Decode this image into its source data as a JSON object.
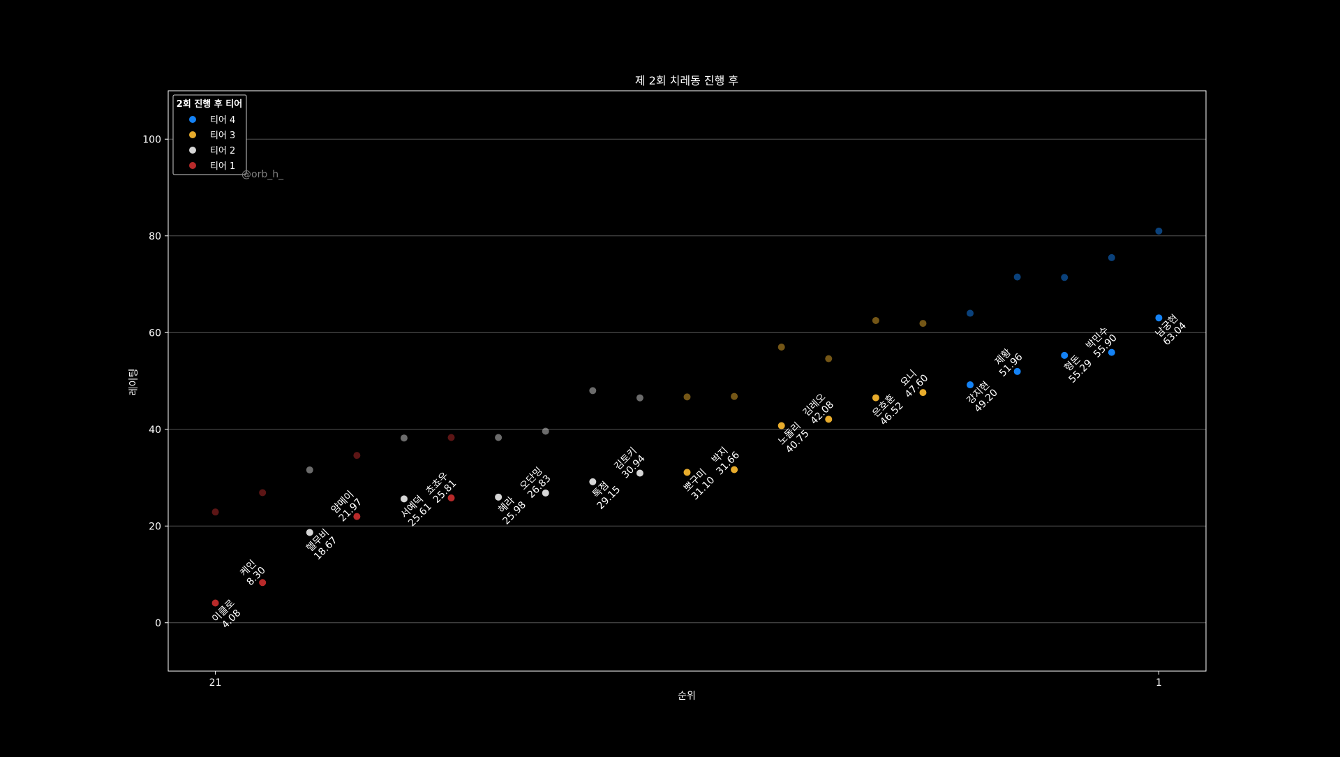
{
  "chart_data": {
    "type": "scatter",
    "title": "제 2회 치레동 진행 후",
    "xlabel": "순위",
    "ylabel": "레이팅",
    "xlim": [
      22,
      0
    ],
    "ylim": [
      -10,
      110
    ],
    "y_ticks": [
      0,
      20,
      40,
      60,
      80,
      100
    ],
    "x_tick_values": [
      21,
      1
    ],
    "x_tick_labels": [
      "21",
      "1"
    ],
    "grid": "y",
    "legend_title": "2회 진행 후 티어",
    "legend_position": "top-left",
    "watermark": "@orb_h_",
    "tiers": [
      {
        "name": "티어 4",
        "color": "#1482F5"
      },
      {
        "name": "티어 3",
        "color": "#E8AC2C"
      },
      {
        "name": "티어 2",
        "color": "#D6D6D6"
      },
      {
        "name": "티어 1",
        "color": "#B82A2A"
      }
    ],
    "previous_points": [
      {
        "x": 21,
        "y": 22.9,
        "tier": 3
      },
      {
        "x": 20,
        "y": 26.9,
        "tier": 3
      },
      {
        "x": 19,
        "y": 31.6,
        "tier": 2
      },
      {
        "x": 18,
        "y": 34.6,
        "tier": 3
      },
      {
        "x": 17,
        "y": 38.2,
        "tier": 2
      },
      {
        "x": 16,
        "y": 38.3,
        "tier": 3
      },
      {
        "x": 15,
        "y": 38.3,
        "tier": 2
      },
      {
        "x": 14,
        "y": 39.6,
        "tier": 2
      },
      {
        "x": 13,
        "y": 48.0,
        "tier": 2
      },
      {
        "x": 12,
        "y": 46.5,
        "tier": 2
      },
      {
        "x": 11,
        "y": 46.7,
        "tier": 1
      },
      {
        "x": 10,
        "y": 46.8,
        "tier": 1
      },
      {
        "x": 9,
        "y": 57.0,
        "tier": 1
      },
      {
        "x": 8,
        "y": 54.6,
        "tier": 1
      },
      {
        "x": 7,
        "y": 62.5,
        "tier": 1
      },
      {
        "x": 6,
        "y": 61.9,
        "tier": 1
      },
      {
        "x": 5,
        "y": 64.0,
        "tier": 0
      },
      {
        "x": 4,
        "y": 71.5,
        "tier": 0
      },
      {
        "x": 3,
        "y": 71.4,
        "tier": 0
      },
      {
        "x": 2,
        "y": 75.5,
        "tier": 0
      },
      {
        "x": 1,
        "y": 81.0,
        "tier": 0
      }
    ],
    "points": [
      {
        "x": 21,
        "y": 4.08,
        "name": "이클로",
        "value": "4.08",
        "tier": 3,
        "side": "below"
      },
      {
        "x": 20,
        "y": 8.3,
        "name": "케인",
        "value": "8.30",
        "tier": 3,
        "side": "above"
      },
      {
        "x": 19,
        "y": 18.67,
        "name": "헬무비",
        "value": "18.67",
        "tier": 2,
        "side": "below"
      },
      {
        "x": 18,
        "y": 21.97,
        "name": "얌메이",
        "value": "21.97",
        "tier": 3,
        "side": "above"
      },
      {
        "x": 17,
        "y": 25.61,
        "name": "서예덕",
        "value": "25.61",
        "tier": 2,
        "side": "below"
      },
      {
        "x": 16,
        "y": 25.81,
        "name": "쵸쵸우",
        "value": "25.81",
        "tier": 3,
        "side": "above"
      },
      {
        "x": 15,
        "y": 25.98,
        "name": "혜라",
        "value": "25.98",
        "tier": 2,
        "side": "below"
      },
      {
        "x": 14,
        "y": 26.83,
        "name": "오단밍",
        "value": "26.83",
        "tier": 2,
        "side": "above"
      },
      {
        "x": 13,
        "y": 29.15,
        "name": "톡점",
        "value": "29.15",
        "tier": 2,
        "side": "below"
      },
      {
        "x": 12,
        "y": 30.94,
        "name": "김토키",
        "value": "30.94",
        "tier": 2,
        "side": "above"
      },
      {
        "x": 11,
        "y": 31.1,
        "name": "뽀구미",
        "value": "31.10",
        "tier": 1,
        "side": "below"
      },
      {
        "x": 10,
        "y": 31.66,
        "name": "박지",
        "value": "31.66",
        "tier": 1,
        "side": "above"
      },
      {
        "x": 9,
        "y": 40.75,
        "name": "노돌리",
        "value": "40.75",
        "tier": 1,
        "side": "below"
      },
      {
        "x": 8,
        "y": 42.08,
        "name": "김레오",
        "value": "42.08",
        "tier": 1,
        "side": "above"
      },
      {
        "x": 7,
        "y": 46.52,
        "name": "은호훈",
        "value": "46.52",
        "tier": 1,
        "side": "below"
      },
      {
        "x": 6,
        "y": 47.6,
        "name": "요니",
        "value": "47.60",
        "tier": 1,
        "side": "above"
      },
      {
        "x": 5,
        "y": 49.2,
        "name": "강지현",
        "value": "49.20",
        "tier": 0,
        "side": "below"
      },
      {
        "x": 4,
        "y": 51.96,
        "name": "제황",
        "value": "51.96",
        "tier": 0,
        "side": "above"
      },
      {
        "x": 3,
        "y": 55.29,
        "name": "형돈",
        "value": "55.29",
        "tier": 0,
        "side": "below"
      },
      {
        "x": 2,
        "y": 55.9,
        "name": "박민수",
        "value": "55.90",
        "tier": 0,
        "side": "above"
      },
      {
        "x": 1,
        "y": 63.04,
        "name": "남궁현",
        "value": "63.04",
        "tier": 0,
        "side": "below"
      }
    ]
  }
}
